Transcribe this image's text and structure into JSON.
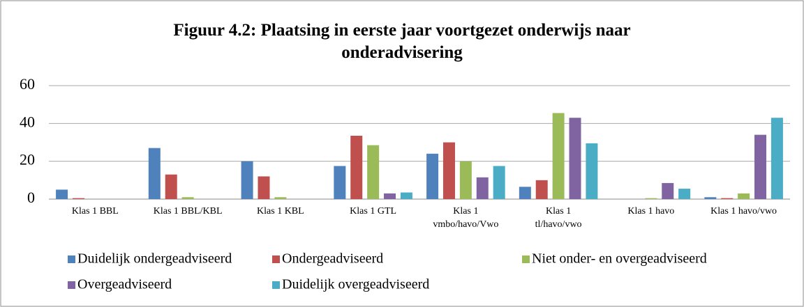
{
  "chart_data": {
    "type": "bar",
    "title": "Figuur 4.2: Plaatsing in eerste jaar voortgezet onderwijs naar onderadvisering",
    "categories": [
      "Klas 1 BBL",
      "Klas 1 BBL/KBL",
      "Klas 1 KBL",
      "Klas 1 GTL",
      "Klas 1 vmbo/havo/Vwo",
      "Klas 1 tl/havo/vwo",
      "Klas 1 havo",
      "Klas 1 havo/vwo"
    ],
    "series": [
      {
        "name": "Duidelijk ondergeadviseerd",
        "color": "#4f81bd",
        "values": [
          5,
          27,
          20,
          17.5,
          24,
          6.5,
          0,
          1
        ]
      },
      {
        "name": "Ondergeadviseerd",
        "color": "#c0504d",
        "values": [
          0.5,
          13,
          12,
          33.5,
          30,
          10,
          0,
          0.5
        ]
      },
      {
        "name": "Niet onder- en overgeadviseerd",
        "color": "#9bbb59",
        "values": [
          0,
          1,
          1,
          28.5,
          20,
          45.5,
          0.5,
          3
        ]
      },
      {
        "name": "Overgeadviseerd",
        "color": "#8064a2",
        "values": [
          0,
          0,
          0,
          3,
          11.5,
          43,
          8.5,
          34
        ]
      },
      {
        "name": "Duidelijk overgeadviseerd",
        "color": "#4bacc6",
        "values": [
          0,
          0,
          0,
          3.5,
          17.5,
          29.5,
          5.5,
          43
        ]
      }
    ],
    "ylim": [
      0,
      60
    ],
    "yticks": [
      0,
      20,
      40,
      60
    ],
    "grid": true,
    "legend": "bottom"
  }
}
